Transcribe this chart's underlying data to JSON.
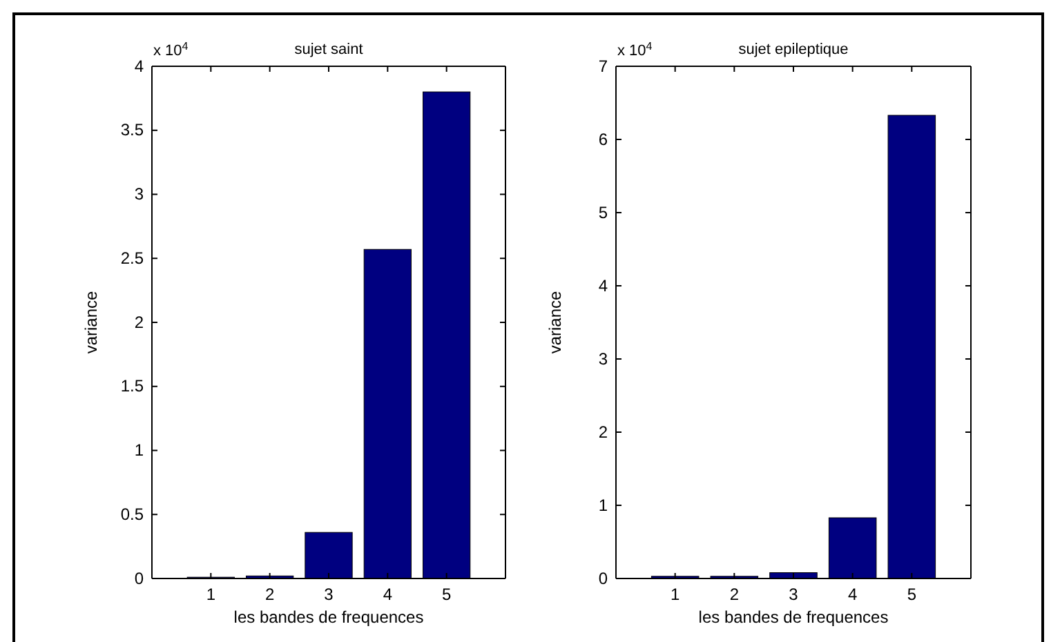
{
  "chart_data": [
    {
      "type": "bar",
      "title": "sujet saint",
      "xlabel": "les bandes de frequences",
      "ylabel": "variance",
      "annotations": [
        "x 10$^{4}$"
      ],
      "categories": [
        "1",
        "2",
        "3",
        "4",
        "5"
      ],
      "values": [
        0.01,
        0.02,
        0.36,
        2.57,
        3.8
      ],
      "color": "#000080",
      "ylim": [
        0,
        4
      ],
      "yticks": [
        0,
        0.5,
        1,
        1.5,
        2,
        2.5,
        3,
        3.5,
        4
      ],
      "grid": false
    },
    {
      "type": "bar",
      "title": "sujet epileptique",
      "xlabel": "les bandes de frequences",
      "ylabel": "variance",
      "annotations": [
        "x 10$^{4}$"
      ],
      "categories": [
        "1",
        "2",
        "3",
        "4",
        "5"
      ],
      "values": [
        0.03,
        0.03,
        0.08,
        0.83,
        6.33
      ],
      "color": "#000080",
      "ylim": [
        0,
        7
      ],
      "yticks": [
        0,
        1,
        2,
        3,
        4,
        5,
        6,
        7
      ],
      "grid": false
    }
  ]
}
